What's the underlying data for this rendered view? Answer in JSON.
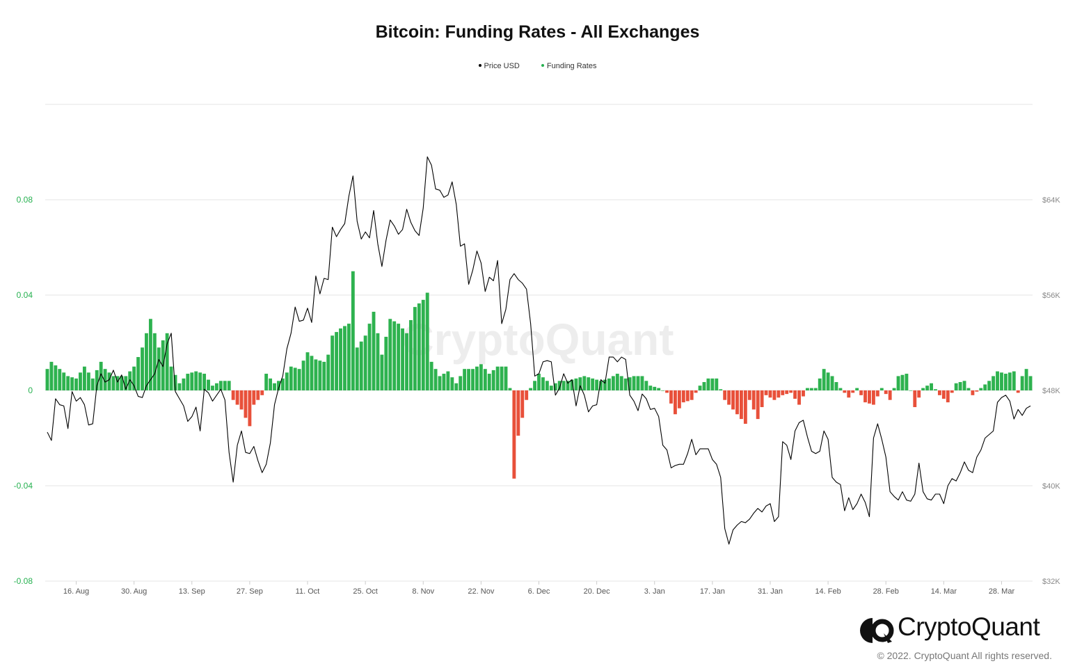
{
  "chart_data": {
    "type": "bar+line",
    "title": "Bitcoin: Funding Rates - All Exchanges",
    "legend": [
      {
        "name": "Price USD",
        "color": "#000000"
      },
      {
        "name": "Funding Rates",
        "color": "#26b150"
      }
    ],
    "left_axis": {
      "ticks": [
        0.08,
        0.04,
        0,
        -0.04,
        -0.08
      ],
      "tick_labels": [
        "0.08",
        "0.04",
        "0",
        "-0.04",
        "-0.08"
      ],
      "range": [
        -0.08,
        0.12
      ],
      "color": "#26b150"
    },
    "right_axis": {
      "ticks": [
        64000,
        56000,
        48000,
        40000,
        32000
      ],
      "tick_labels": [
        "$64K",
        "$56K",
        "$48K",
        "$40K",
        "$32K"
      ],
      "range": [
        32000,
        72000
      ],
      "color": "#888888"
    },
    "x_ticks": [
      "16. Aug",
      "30. Aug",
      "13. Sep",
      "27. Sep",
      "11. Oct",
      "25. Oct",
      "8. Nov",
      "22. Nov",
      "6. Dec",
      "20. Dec",
      "3. Jan",
      "17. Jan",
      "31. Jan",
      "14. Feb",
      "28. Feb",
      "14. Mar",
      "28. Mar"
    ],
    "x_tick_day_index": [
      7,
      21,
      35,
      49,
      63,
      77,
      91,
      105,
      119,
      133,
      147,
      161,
      175,
      189,
      203,
      217,
      231
    ],
    "start_date": "2021-08-09",
    "colors": {
      "positive": "#2eb24f",
      "negative": "#e8503a",
      "price": "#000000",
      "grid": "#e6e6e6"
    },
    "funding_anchors": [
      [
        0,
        0.009
      ],
      [
        1,
        0.012
      ],
      [
        3,
        0.009
      ],
      [
        5,
        0.006
      ],
      [
        7,
        0.005
      ],
      [
        9,
        0.01
      ],
      [
        11,
        0.005
      ],
      [
        13,
        0.012
      ],
      [
        14,
        0.009
      ],
      [
        16,
        0.006
      ],
      [
        19,
        0.006
      ],
      [
        21,
        0.01
      ],
      [
        23,
        0.018
      ],
      [
        25,
        0.03
      ],
      [
        27,
        0.018
      ],
      [
        29,
        0.024
      ],
      [
        30,
        0.01
      ],
      [
        32,
        0.003
      ],
      [
        34,
        0.007
      ],
      [
        36,
        0.008
      ],
      [
        38,
        0.007
      ],
      [
        40,
        0.002
      ],
      [
        42,
        0.004
      ],
      [
        44,
        0.004
      ],
      [
        45,
        -0.004
      ],
      [
        47,
        -0.008
      ],
      [
        49,
        -0.015
      ],
      [
        50,
        -0.006
      ],
      [
        52,
        -0.002
      ],
      [
        53,
        0.007
      ],
      [
        55,
        0.003
      ],
      [
        57,
        0.005
      ],
      [
        59,
        0.01
      ],
      [
        61,
        0.009
      ],
      [
        63,
        0.016
      ],
      [
        65,
        0.013
      ],
      [
        67,
        0.012
      ],
      [
        68,
        0.015
      ],
      [
        69,
        0.023
      ],
      [
        71,
        0.026
      ],
      [
        73,
        0.028
      ],
      [
        74,
        0.05
      ],
      [
        75,
        0.018
      ],
      [
        77,
        0.023
      ],
      [
        79,
        0.033
      ],
      [
        81,
        0.015
      ],
      [
        83,
        0.03
      ],
      [
        85,
        0.028
      ],
      [
        87,
        0.024
      ],
      [
        89,
        0.035
      ],
      [
        91,
        0.038
      ],
      [
        92,
        0.041
      ],
      [
        93,
        0.012
      ],
      [
        95,
        0.006
      ],
      [
        97,
        0.008
      ],
      [
        99,
        0.003
      ],
      [
        101,
        0.009
      ],
      [
        103,
        0.009
      ],
      [
        105,
        0.011
      ],
      [
        107,
        0.007
      ],
      [
        109,
        0.01
      ],
      [
        111,
        0.01
      ],
      [
        112,
        0.001
      ],
      [
        113,
        -0.037
      ],
      [
        114,
        -0.019
      ],
      [
        116,
        -0.004
      ],
      [
        117,
        0.001
      ],
      [
        119,
        0.007
      ],
      [
        121,
        0.004
      ],
      [
        122,
        0.002
      ],
      [
        124,
        0.004
      ],
      [
        126,
        0.004
      ],
      [
        128,
        0.005
      ],
      [
        130,
        0.006
      ],
      [
        132,
        0.005
      ],
      [
        134,
        0.004
      ],
      [
        136,
        0.005
      ],
      [
        138,
        0.007
      ],
      [
        140,
        0.005
      ],
      [
        142,
        0.006
      ],
      [
        144,
        0.006
      ],
      [
        146,
        0.002
      ],
      [
        148,
        0.001
      ],
      [
        150,
        -0.001
      ],
      [
        152,
        -0.01
      ],
      [
        154,
        -0.005
      ],
      [
        156,
        -0.004
      ],
      [
        158,
        0.002
      ],
      [
        160,
        0.005
      ],
      [
        162,
        0.005
      ],
      [
        164,
        -0.004
      ],
      [
        166,
        -0.008
      ],
      [
        168,
        -0.012
      ],
      [
        169,
        -0.014
      ],
      [
        170,
        -0.004
      ],
      [
        172,
        -0.012
      ],
      [
        174,
        -0.002
      ],
      [
        176,
        -0.004
      ],
      [
        178,
        -0.002
      ],
      [
        180,
        -0.001
      ],
      [
        182,
        -0.006
      ],
      [
        184,
        0.001
      ],
      [
        186,
        0.001
      ],
      [
        188,
        0.009
      ],
      [
        190,
        0.006
      ],
      [
        192,
        0.001
      ],
      [
        194,
        -0.003
      ],
      [
        196,
        0.001
      ],
      [
        198,
        -0.005
      ],
      [
        200,
        -0.006
      ],
      [
        202,
        0.001
      ],
      [
        204,
        -0.004
      ],
      [
        206,
        0.006
      ],
      [
        208,
        0.007
      ],
      [
        210,
        -0.007
      ],
      [
        212,
        0.001
      ],
      [
        214,
        0.003
      ],
      [
        216,
        -0.002
      ],
      [
        218,
        -0.005
      ],
      [
        220,
        0.003
      ],
      [
        222,
        0.004
      ],
      [
        224,
        -0.002
      ],
      [
        226,
        0.001
      ],
      [
        228,
        0.004
      ],
      [
        230,
        0.008
      ],
      [
        232,
        0.007
      ],
      [
        234,
        0.008
      ],
      [
        235,
        -0.001
      ],
      [
        236,
        0.006
      ],
      [
        237,
        0.009
      ],
      [
        238,
        0.006
      ]
    ],
    "price_anchors": [
      [
        0,
        44500
      ],
      [
        1,
        43800
      ],
      [
        2,
        47300
      ],
      [
        3,
        46800
      ],
      [
        4,
        46700
      ],
      [
        5,
        44800
      ],
      [
        6,
        47900
      ],
      [
        7,
        47100
      ],
      [
        8,
        47400
      ],
      [
        9,
        46800
      ],
      [
        10,
        45100
      ],
      [
        11,
        45200
      ],
      [
        12,
        48400
      ],
      [
        13,
        49400
      ],
      [
        14,
        48700
      ],
      [
        15,
        48900
      ],
      [
        16,
        49700
      ],
      [
        17,
        48700
      ],
      [
        18,
        49300
      ],
      [
        19,
        48100
      ],
      [
        20,
        48900
      ],
      [
        21,
        48400
      ],
      [
        22,
        47500
      ],
      [
        23,
        47400
      ],
      [
        24,
        48400
      ],
      [
        25,
        48900
      ],
      [
        26,
        49400
      ],
      [
        27,
        50600
      ],
      [
        28,
        50000
      ],
      [
        29,
        51900
      ],
      [
        30,
        52800
      ],
      [
        31,
        47900
      ],
      [
        32,
        47300
      ],
      [
        33,
        46700
      ],
      [
        34,
        45400
      ],
      [
        35,
        45800
      ],
      [
        36,
        46600
      ],
      [
        37,
        44600
      ],
      [
        38,
        48100
      ],
      [
        39,
        47800
      ],
      [
        40,
        47100
      ],
      [
        41,
        47600
      ],
      [
        42,
        48100
      ],
      [
        43,
        47200
      ],
      [
        44,
        42800
      ],
      [
        45,
        40300
      ],
      [
        46,
        43400
      ],
      [
        47,
        44600
      ],
      [
        48,
        42800
      ],
      [
        49,
        42700
      ],
      [
        50,
        43300
      ],
      [
        51,
        42100
      ],
      [
        52,
        41100
      ],
      [
        53,
        41800
      ],
      [
        54,
        43600
      ],
      [
        55,
        46800
      ],
      [
        56,
        48200
      ],
      [
        57,
        49200
      ],
      [
        58,
        51500
      ],
      [
        59,
        52800
      ],
      [
        60,
        55000
      ],
      [
        61,
        53800
      ],
      [
        62,
        53900
      ],
      [
        63,
        54900
      ],
      [
        64,
        53700
      ],
      [
        65,
        57600
      ],
      [
        66,
        56100
      ],
      [
        67,
        57400
      ],
      [
        68,
        57300
      ],
      [
        69,
        61700
      ],
      [
        70,
        60900
      ],
      [
        71,
        61500
      ],
      [
        72,
        62000
      ],
      [
        73,
        64300
      ],
      [
        74,
        66000
      ],
      [
        75,
        62200
      ],
      [
        76,
        60700
      ],
      [
        77,
        61300
      ],
      [
        78,
        60800
      ],
      [
        79,
        63100
      ],
      [
        80,
        60300
      ],
      [
        81,
        58400
      ],
      [
        82,
        60600
      ],
      [
        83,
        62300
      ],
      [
        84,
        61800
      ],
      [
        85,
        61100
      ],
      [
        86,
        61500
      ],
      [
        87,
        63200
      ],
      [
        88,
        62100
      ],
      [
        89,
        61400
      ],
      [
        90,
        61000
      ],
      [
        91,
        63300
      ],
      [
        92,
        67600
      ],
      [
        93,
        66900
      ],
      [
        94,
        64900
      ],
      [
        95,
        64800
      ],
      [
        96,
        64200
      ],
      [
        97,
        64400
      ],
      [
        98,
        65500
      ],
      [
        99,
        63600
      ],
      [
        100,
        60100
      ],
      [
        101,
        60300
      ],
      [
        102,
        56900
      ],
      [
        103,
        58100
      ],
      [
        104,
        59700
      ],
      [
        105,
        58700
      ],
      [
        106,
        56300
      ],
      [
        107,
        57500
      ],
      [
        108,
        57200
      ],
      [
        109,
        58900
      ],
      [
        110,
        53600
      ],
      [
        111,
        54800
      ],
      [
        112,
        57300
      ],
      [
        113,
        57800
      ],
      [
        114,
        57300
      ],
      [
        115,
        57000
      ],
      [
        116,
        56500
      ],
      [
        117,
        53600
      ],
      [
        118,
        49200
      ],
      [
        119,
        49400
      ],
      [
        120,
        50400
      ],
      [
        121,
        50500
      ],
      [
        122,
        50400
      ],
      [
        123,
        47600
      ],
      [
        124,
        48200
      ],
      [
        125,
        49400
      ],
      [
        126,
        48600
      ],
      [
        127,
        48900
      ],
      [
        128,
        46700
      ],
      [
        129,
        48400
      ],
      [
        130,
        47600
      ],
      [
        131,
        46200
      ],
      [
        132,
        46700
      ],
      [
        133,
        46800
      ],
      [
        134,
        48900
      ],
      [
        135,
        48600
      ],
      [
        136,
        50800
      ],
      [
        137,
        50800
      ],
      [
        138,
        50400
      ],
      [
        139,
        50800
      ],
      [
        140,
        50600
      ],
      [
        141,
        47600
      ],
      [
        142,
        47100
      ],
      [
        143,
        46300
      ],
      [
        144,
        47700
      ],
      [
        145,
        47300
      ],
      [
        146,
        46400
      ],
      [
        147,
        46500
      ],
      [
        148,
        45800
      ],
      [
        149,
        43400
      ],
      [
        150,
        43000
      ],
      [
        151,
        41500
      ],
      [
        152,
        41700
      ],
      [
        153,
        41800
      ],
      [
        154,
        41800
      ],
      [
        155,
        42700
      ],
      [
        156,
        43900
      ],
      [
        157,
        42600
      ],
      [
        158,
        43100
      ],
      [
        159,
        43100
      ],
      [
        160,
        43100
      ],
      [
        161,
        42200
      ],
      [
        162,
        41800
      ],
      [
        163,
        40700
      ],
      [
        164,
        36400
      ],
      [
        165,
        35100
      ],
      [
        166,
        36300
      ],
      [
        167,
        36700
      ],
      [
        168,
        37000
      ],
      [
        169,
        36900
      ],
      [
        170,
        37200
      ],
      [
        171,
        37700
      ],
      [
        172,
        38100
      ],
      [
        173,
        37800
      ],
      [
        174,
        38300
      ],
      [
        175,
        38500
      ],
      [
        176,
        37000
      ],
      [
        177,
        37400
      ],
      [
        178,
        43700
      ],
      [
        179,
        43400
      ],
      [
        180,
        42200
      ],
      [
        181,
        44600
      ],
      [
        182,
        45300
      ],
      [
        183,
        45500
      ],
      [
        184,
        44100
      ],
      [
        185,
        42900
      ],
      [
        186,
        42700
      ],
      [
        187,
        42900
      ],
      [
        188,
        44600
      ],
      [
        189,
        43900
      ],
      [
        190,
        40700
      ],
      [
        191,
        40300
      ],
      [
        192,
        40100
      ],
      [
        193,
        37900
      ],
      [
        194,
        39000
      ],
      [
        195,
        38000
      ],
      [
        196,
        38500
      ],
      [
        197,
        39300
      ],
      [
        198,
        38600
      ],
      [
        199,
        37400
      ],
      [
        200,
        44000
      ],
      [
        201,
        45200
      ],
      [
        202,
        43900
      ],
      [
        203,
        42400
      ],
      [
        204,
        39500
      ],
      [
        205,
        39100
      ],
      [
        206,
        38800
      ],
      [
        207,
        39500
      ],
      [
        208,
        38800
      ],
      [
        209,
        38700
      ],
      [
        210,
        39300
      ],
      [
        211,
        41900
      ],
      [
        212,
        39500
      ],
      [
        213,
        38900
      ],
      [
        214,
        38800
      ],
      [
        215,
        39300
      ],
      [
        216,
        39300
      ],
      [
        217,
        38500
      ],
      [
        218,
        40000
      ],
      [
        219,
        40600
      ],
      [
        220,
        40400
      ],
      [
        221,
        41100
      ],
      [
        222,
        42000
      ],
      [
        223,
        41300
      ],
      [
        224,
        41100
      ],
      [
        225,
        42400
      ],
      [
        226,
        43000
      ],
      [
        227,
        44000
      ],
      [
        228,
        44300
      ],
      [
        229,
        44600
      ],
      [
        230,
        47000
      ],
      [
        231,
        47400
      ],
      [
        232,
        47600
      ],
      [
        233,
        47100
      ],
      [
        234,
        45600
      ],
      [
        235,
        46400
      ],
      [
        236,
        45900
      ],
      [
        237,
        46500
      ],
      [
        238,
        46700
      ]
    ]
  },
  "branding": {
    "name": "CryptoQuant",
    "copyright": "© 2022. CryptoQuant All rights reserved.",
    "watermark": "CryptoQuant"
  }
}
